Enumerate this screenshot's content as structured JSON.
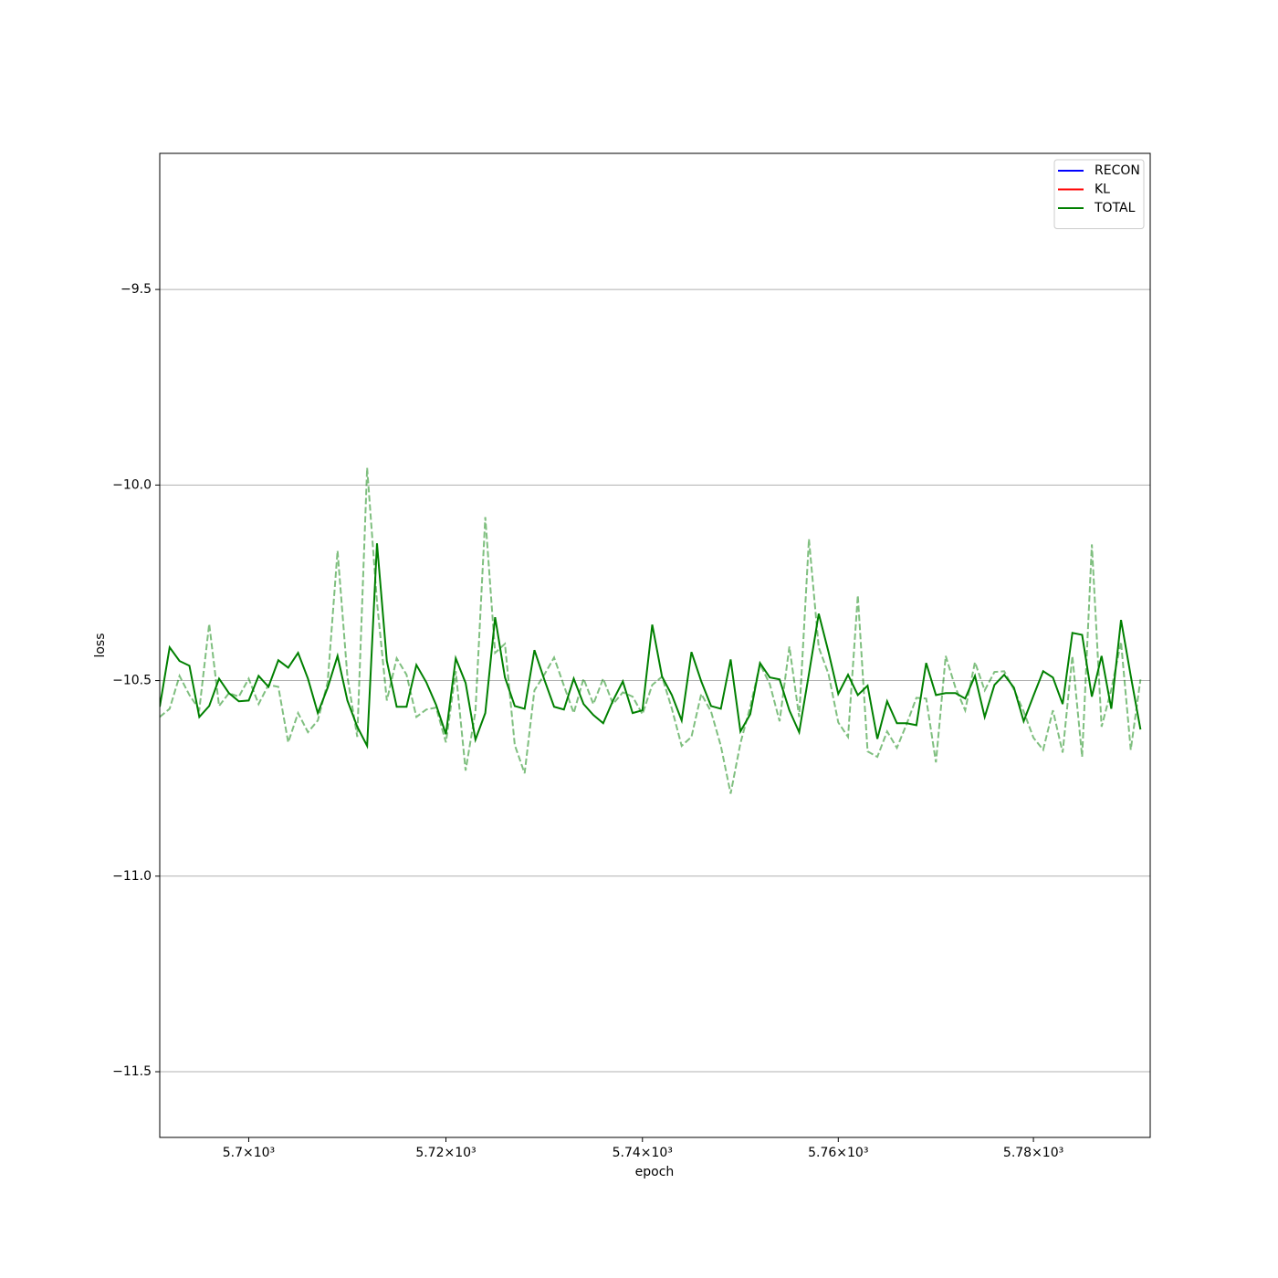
{
  "chart_data": {
    "type": "line",
    "xlabel": "epoch",
    "ylabel": "loss",
    "xscale": "log",
    "grid": "y",
    "legend_corner": "upper right",
    "legend_only": [
      {
        "name": "RECON",
        "color": "#0000ff"
      },
      {
        "name": "KL",
        "color": "#ff0000"
      }
    ],
    "xlim": [
      5691,
      5792
    ],
    "ylim": [
      -11.668,
      -9.152
    ],
    "xticks": [
      {
        "value": 5700,
        "label": "5.7×10³"
      },
      {
        "value": 5720,
        "label": "5.72×10³"
      },
      {
        "value": 5740,
        "label": "5.74×10³"
      },
      {
        "value": 5760,
        "label": "5.76×10³"
      },
      {
        "value": 5780,
        "label": "5.78×10³"
      }
    ],
    "yticks": [
      {
        "value": -9.5,
        "label": "−9.5"
      },
      {
        "value": -10.0,
        "label": "−10.0"
      },
      {
        "value": -10.5,
        "label": "−10.5"
      },
      {
        "value": -11.0,
        "label": "−11.0"
      },
      {
        "value": -11.5,
        "label": "−11.5"
      }
    ],
    "x": [
      5691,
      5692,
      5693,
      5694,
      5695,
      5696,
      5697,
      5698,
      5699,
      5700,
      5701,
      5702,
      5703,
      5704,
      5705,
      5706,
      5707,
      5708,
      5709,
      5710,
      5711,
      5712,
      5713,
      5714,
      5715,
      5716,
      5717,
      5718,
      5719,
      5720,
      5721,
      5722,
      5723,
      5724,
      5725,
      5726,
      5727,
      5728,
      5729,
      5730,
      5731,
      5732,
      5733,
      5734,
      5735,
      5736,
      5737,
      5738,
      5739,
      5740,
      5741,
      5742,
      5743,
      5744,
      5745,
      5746,
      5747,
      5748,
      5749,
      5750,
      5751,
      5752,
      5753,
      5754,
      5755,
      5756,
      5757,
      5758,
      5759,
      5760,
      5761,
      5762,
      5763,
      5764,
      5765,
      5766,
      5767,
      5768,
      5769,
      5770,
      5771,
      5772,
      5773,
      5774,
      5775,
      5776,
      5777,
      5778,
      5779,
      5780,
      5781,
      5782,
      5783,
      5784,
      5785,
      5786,
      5787,
      5788,
      5789,
      5790,
      5791
    ],
    "series": [
      {
        "color": "#008000",
        "dash": true,
        "alpha": 0.5,
        "values": [
          -10.593,
          -10.572,
          -10.488,
          -10.537,
          -10.574,
          -10.355,
          -10.565,
          -10.532,
          -10.541,
          -10.495,
          -10.56,
          -10.511,
          -10.516,
          -10.658,
          -10.583,
          -10.632,
          -10.602,
          -10.504,
          -10.168,
          -10.49,
          -10.644,
          -9.956,
          -10.299,
          -10.551,
          -10.443,
          -10.485,
          -10.593,
          -10.574,
          -10.569,
          -10.658,
          -10.476,
          -10.73,
          -10.579,
          -10.082,
          -10.429,
          -10.406,
          -10.665,
          -10.737,
          -10.525,
          -10.485,
          -10.441,
          -10.513,
          -10.583,
          -10.495,
          -10.56,
          -10.495,
          -10.56,
          -10.53,
          -10.541,
          -10.586,
          -10.511,
          -10.49,
          -10.572,
          -10.667,
          -10.644,
          -10.534,
          -10.579,
          -10.667,
          -10.789,
          -10.66,
          -10.567,
          -10.458,
          -10.509,
          -10.604,
          -10.413,
          -10.593,
          -10.138,
          -10.415,
          -10.483,
          -10.607,
          -10.644,
          -10.282,
          -10.681,
          -10.695,
          -10.63,
          -10.672,
          -10.611,
          -10.544,
          -10.546,
          -10.709,
          -10.437,
          -10.518,
          -10.576,
          -10.453,
          -10.525,
          -10.478,
          -10.476,
          -10.523,
          -10.579,
          -10.646,
          -10.677,
          -10.576,
          -10.684,
          -10.437,
          -10.695,
          -10.152,
          -10.618,
          -10.523,
          -10.401,
          -10.677,
          -10.497
        ]
      },
      {
        "name": "TOTAL",
        "color": "#008000",
        "values": [
          -10.567,
          -10.415,
          -10.45,
          -10.462,
          -10.593,
          -10.565,
          -10.495,
          -10.532,
          -10.553,
          -10.551,
          -10.488,
          -10.516,
          -10.448,
          -10.467,
          -10.429,
          -10.495,
          -10.583,
          -10.518,
          -10.437,
          -10.551,
          -10.618,
          -10.667,
          -10.149,
          -10.45,
          -10.567,
          -10.567,
          -10.46,
          -10.504,
          -10.562,
          -10.637,
          -10.443,
          -10.506,
          -10.651,
          -10.583,
          -10.338,
          -10.492,
          -10.565,
          -10.572,
          -10.422,
          -10.497,
          -10.567,
          -10.574,
          -10.495,
          -10.56,
          -10.588,
          -10.609,
          -10.551,
          -10.502,
          -10.583,
          -10.576,
          -10.357,
          -10.49,
          -10.537,
          -10.602,
          -10.427,
          -10.502,
          -10.565,
          -10.572,
          -10.446,
          -10.63,
          -10.586,
          -10.455,
          -10.492,
          -10.497,
          -10.576,
          -10.632,
          -10.483,
          -10.329,
          -10.427,
          -10.534,
          -10.485,
          -10.537,
          -10.513,
          -10.649,
          -10.553,
          -10.609,
          -10.609,
          -10.614,
          -10.455,
          -10.537,
          -10.532,
          -10.532,
          -10.546,
          -10.488,
          -10.593,
          -10.511,
          -10.485,
          -10.518,
          -10.604,
          -10.539,
          -10.476,
          -10.492,
          -10.56,
          -10.378,
          -10.383,
          -10.541,
          -10.437,
          -10.572,
          -10.345,
          -10.488,
          -10.625
        ]
      }
    ]
  }
}
